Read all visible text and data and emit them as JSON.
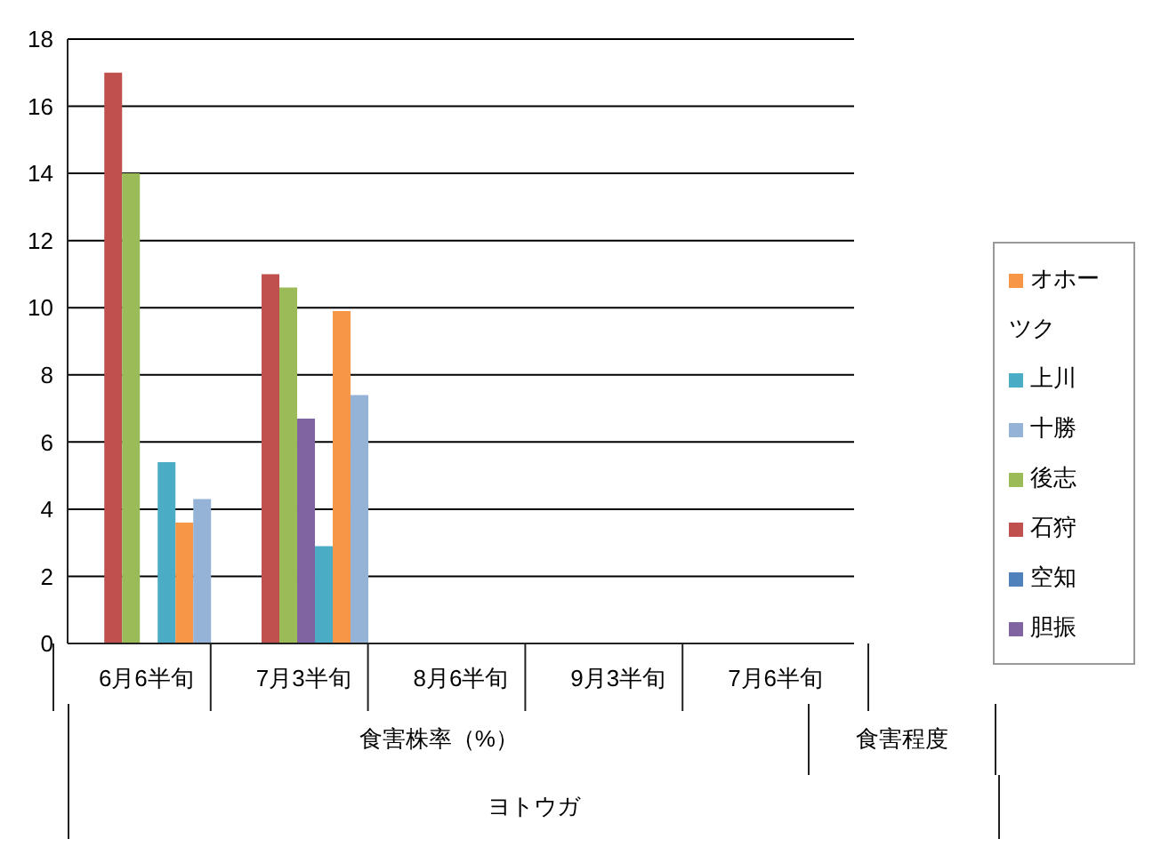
{
  "chart_data": {
    "type": "bar",
    "categories": [
      "6月6半旬",
      "7月3半旬",
      "8月6半旬",
      "9月3半旬",
      "7月6半旬"
    ],
    "series": [
      {
        "name": "空知",
        "color": "#4f81bd",
        "values": [
          null,
          null,
          null,
          null,
          null
        ]
      },
      {
        "name": "石狩",
        "color": "#c0504d",
        "values": [
          17.0,
          11.0,
          null,
          null,
          null
        ]
      },
      {
        "name": "後志",
        "color": "#9bbb59",
        "values": [
          14.0,
          10.6,
          null,
          null,
          null
        ]
      },
      {
        "name": "胆振",
        "color": "#8064a2",
        "values": [
          null,
          6.7,
          null,
          null,
          null
        ]
      },
      {
        "name": "上川",
        "color": "#4bacc6",
        "values": [
          5.4,
          2.9,
          null,
          null,
          null
        ]
      },
      {
        "name": "オホーツク",
        "color": "#f79646",
        "values": [
          3.6,
          9.9,
          null,
          null,
          null
        ]
      },
      {
        "name": "十勝",
        "color": "#95b3d7",
        "values": [
          4.3,
          7.4,
          null,
          null,
          null
        ]
      }
    ],
    "ylim": [
      0,
      18
    ],
    "yticks": [
      0,
      2,
      4,
      6,
      8,
      10,
      12,
      14,
      16,
      18
    ],
    "grid": "y",
    "legend": "right",
    "annotations": [
      "食害株率（%）",
      "食害程度",
      "ヨトウガ"
    ]
  }
}
